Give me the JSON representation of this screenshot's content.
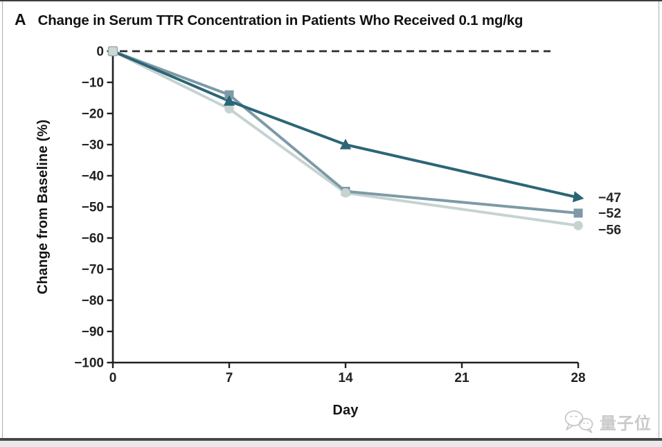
{
  "header": {
    "panel_label": "A",
    "title": "Change in Serum TTR Concentration in Patients Who Received 0.1 mg/kg"
  },
  "watermark": {
    "text": "量子位"
  },
  "colors": {
    "axis": "#231f20",
    "dash_line": "#2b2b2b",
    "series_dark_teal": "#2c6676",
    "series_gray_blue": "#7e9aa6",
    "series_light_gray": "#c5d3d1",
    "origin_marker_fill": "#ccd8d5",
    "origin_marker_stroke": "#96aba8",
    "label_text": "#262626"
  },
  "chart_data": {
    "type": "line",
    "title": "Change in Serum TTR Concentration in Patients Who Received 0.1 mg/kg",
    "panel": "A",
    "xlabel": "Day",
    "ylabel": "Change from Baseline (%)",
    "x": [
      0,
      7,
      14,
      28
    ],
    "x_ticks": [
      0,
      7,
      14,
      21,
      28
    ],
    "x_tick_labels": [
      "0",
      "7",
      "14",
      "21",
      "28"
    ],
    "y_ticks": [
      0,
      -10,
      -20,
      -30,
      -40,
      -50,
      -60,
      -70,
      -80,
      -90,
      -100
    ],
    "y_tick_labels": [
      "0",
      "−10",
      "−20",
      "−30",
      "−40",
      "−50",
      "−60",
      "−70",
      "−80",
      "−90",
      "−100"
    ],
    "xlim": [
      0,
      28
    ],
    "ylim": [
      -100,
      0
    ],
    "zero_line": {
      "dashed": true,
      "value": 0
    },
    "grid": false,
    "legend": "none",
    "series": [
      {
        "name": "dose-group-triangle",
        "marker": "triangle",
        "color": "#2c6676",
        "values": [
          0,
          -16,
          -30,
          -47
        ],
        "end_label": "−47",
        "label_dy": 0
      },
      {
        "name": "dose-group-square",
        "marker": "square",
        "color": "#7e9aa6",
        "values": [
          0,
          -14,
          -45,
          -52
        ],
        "end_label": "−52",
        "label_dy": 0
      },
      {
        "name": "dose-group-circle",
        "marker": "circle",
        "color": "#c5d3d1",
        "values": [
          0,
          -18.5,
          -45.5,
          -56
        ],
        "end_label": "−56",
        "label_dy": 6
      }
    ]
  }
}
